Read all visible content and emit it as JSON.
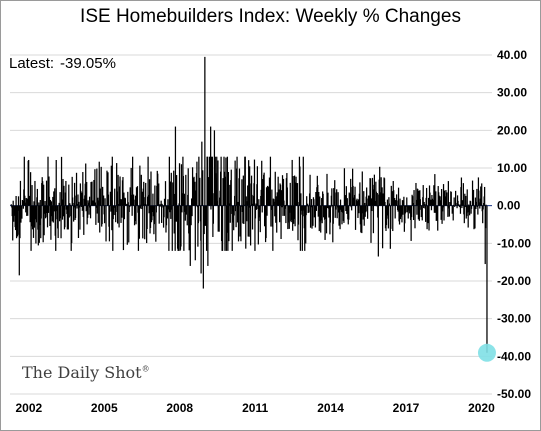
{
  "title": "ISE Homebuilders Index: Weekly % Changes",
  "latest_label": "Latest:",
  "latest_value": "-39.05%",
  "watermark": "The Daily Shot",
  "watermark_mark": "®",
  "colors": {
    "series": "#000000",
    "highlight": "#7fe0e6",
    "grid": "#d9d9d9",
    "zero_line": "#1f3b8c"
  },
  "chart_data": {
    "type": "bar",
    "title": "ISE Homebuilders Index: Weekly % Changes",
    "xlabel": "",
    "ylabel": "",
    "x_range": [
      2001.25,
      2020.42
    ],
    "ylim": [
      -50,
      40
    ],
    "y_ticks": [
      40,
      30,
      20,
      10,
      0,
      -10,
      -20,
      -30,
      -40,
      -50
    ],
    "y_tick_labels": [
      "40.00",
      "30.00",
      "20.00",
      "10.00",
      "0.00",
      "-10.00",
      "-20.00",
      "-30.00",
      "-40.00",
      "-50.00"
    ],
    "x_ticks": [
      2002,
      2005,
      2008,
      2011,
      2014,
      2017,
      2020
    ],
    "x_tick_labels": [
      "2002",
      "2005",
      "2008",
      "2011",
      "2014",
      "2017",
      "2020"
    ],
    "grid": true,
    "y_axis_side": "right",
    "highlight": {
      "x": 2020.22,
      "y": -39.05
    },
    "annotated_points": [
      {
        "x": 2001.62,
        "y": -18.5
      },
      {
        "x": 2007.83,
        "y": 21.0
      },
      {
        "x": 2008.42,
        "y": -16.0
      },
      {
        "x": 2008.62,
        "y": -14.5
      },
      {
        "x": 2008.85,
        "y": -18.0
      },
      {
        "x": 2008.88,
        "y": 17.0
      },
      {
        "x": 2008.94,
        "y": -22.0
      },
      {
        "x": 2009.0,
        "y": 39.5
      },
      {
        "x": 2009.12,
        "y": -16.0
      },
      {
        "x": 2009.23,
        "y": 21.0
      },
      {
        "x": 2009.38,
        "y": 20.0
      },
      {
        "x": 2009.52,
        "y": 12.0
      },
      {
        "x": 2015.9,
        "y": -13.5
      },
      {
        "x": 2019.88,
        "y": 7.5
      },
      {
        "x": 2020.15,
        "y": -15.5
      },
      {
        "x": 2020.22,
        "y": -39.05
      }
    ],
    "typical_volatility": [
      {
        "from": 2001.25,
        "to": 2006.0,
        "amplitude": 6
      },
      {
        "from": 2006.0,
        "to": 2007.5,
        "amplitude": 6
      },
      {
        "from": 2007.5,
        "to": 2010.0,
        "amplitude": 11
      },
      {
        "from": 2010.0,
        "to": 2013.0,
        "amplitude": 7
      },
      {
        "from": 2013.0,
        "to": 2016.5,
        "amplitude": 5
      },
      {
        "from": 2016.5,
        "to": 2020.0,
        "amplitude": 3.5
      },
      {
        "from": 2020.0,
        "to": 2020.22,
        "amplitude": 4
      }
    ]
  }
}
